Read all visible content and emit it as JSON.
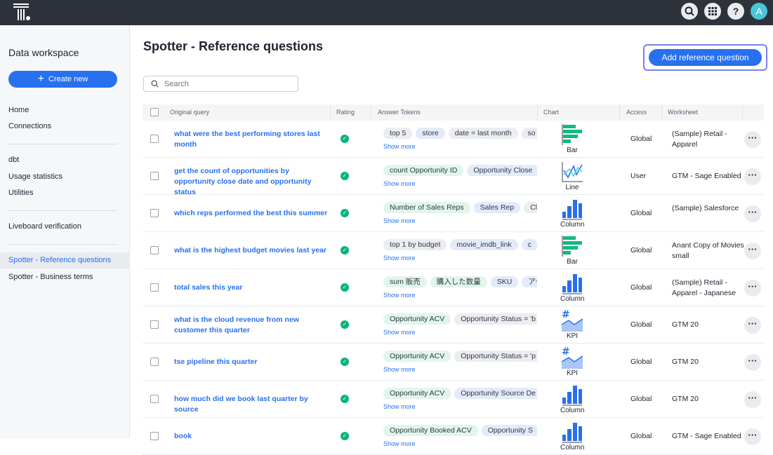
{
  "header": {
    "avatar_initial": "A",
    "icons": [
      "search-icon",
      "apps-grid-icon",
      "help-icon"
    ]
  },
  "sidebar": {
    "title": "Data workspace",
    "create_label": "Create new",
    "items": [
      {
        "label": "Home"
      },
      {
        "label": "Connections"
      },
      {
        "label": "dbt"
      },
      {
        "label": "Usage statistics"
      },
      {
        "label": "Utilities"
      },
      {
        "label": "Liveboard verification"
      },
      {
        "label": "Spotter - Reference questions",
        "active": true
      },
      {
        "label": "Spotter - Business terms"
      }
    ]
  },
  "main": {
    "title": "Spotter - Reference questions",
    "add_label": "Add reference question",
    "search_placeholder": "Search",
    "columns": [
      "Original query",
      "Rating",
      "Answer Tokens",
      "Chart",
      "Access",
      "Worksheet"
    ],
    "show_more": "Show more",
    "colors": {
      "accent": "#2770ef",
      "measure": "#e1f5ec",
      "attribute": "#e3eaf9",
      "keyword": "#ebedf0",
      "rating": "#06b480"
    },
    "rows": [
      {
        "query": "what were the best performing stores last month",
        "rating": "positive",
        "tokens": [
          {
            "t": "top 5",
            "k": "keyword"
          },
          {
            "t": "store",
            "k": "attribute"
          },
          {
            "t": "date = last month",
            "k": "keyword"
          },
          {
            "t": "so",
            "k": "keyword"
          }
        ],
        "chart": "Bar",
        "access": "Global",
        "worksheet": "(Sample) Retail - Apparel"
      },
      {
        "query": "get the count of opportunities by opportunity close date and opportunity status",
        "rating": "positive",
        "tokens": [
          {
            "t": "count Opportunity ID",
            "k": "measure"
          },
          {
            "t": "Opportunity Close",
            "k": "attribute"
          }
        ],
        "chart": "Line",
        "access": "User",
        "worksheet": "GTM - Sage Enabled"
      },
      {
        "query": "which reps performed the best this summer",
        "rating": "positive",
        "tokens": [
          {
            "t": "Number of Sales Reps",
            "k": "measure"
          },
          {
            "t": "Sales Rep",
            "k": "attribute"
          },
          {
            "t": "Cl",
            "k": "keyword"
          }
        ],
        "chart": "Column",
        "access": "Global",
        "worksheet": "(Sample) Salesforce"
      },
      {
        "query": "what is the highest budget movies last year",
        "rating": "positive",
        "tokens": [
          {
            "t": "top 1 by budget",
            "k": "keyword"
          },
          {
            "t": "movie_imdb_link",
            "k": "attribute"
          },
          {
            "t": "c",
            "k": "attribute"
          }
        ],
        "chart": "Bar",
        "access": "Global",
        "worksheet": "Anant Copy of Movies - small"
      },
      {
        "query": "total sales this year",
        "rating": "positive",
        "tokens": [
          {
            "t": "sum 販売",
            "k": "measure"
          },
          {
            "t": "購入した数量",
            "k": "measure"
          },
          {
            "t": "SKU",
            "k": "attribute"
          },
          {
            "t": "アー",
            "k": "attribute"
          }
        ],
        "chart": "Column",
        "access": "Global",
        "worksheet": "(Sample) Retail - Apparel - Japanese"
      },
      {
        "query": "what is the cloud revenue from new customer this quarter",
        "rating": "positive",
        "tokens": [
          {
            "t": "Opportunity ACV",
            "k": "measure"
          },
          {
            "t": "Opportunity Status = 'b",
            "k": "keyword"
          }
        ],
        "chart": "KPI",
        "access": "Global",
        "worksheet": "GTM 20"
      },
      {
        "query": "tse pipeline this quarter",
        "rating": "positive",
        "tokens": [
          {
            "t": "Opportunity ACV",
            "k": "measure"
          },
          {
            "t": "Opportunity Status = 'p",
            "k": "keyword"
          }
        ],
        "chart": "KPI",
        "access": "Global",
        "worksheet": "GTM 20"
      },
      {
        "query": "how much did we book last quarter by source",
        "rating": "positive",
        "tokens": [
          {
            "t": "Opportunity ACV",
            "k": "measure"
          },
          {
            "t": "Opportunity Source De",
            "k": "attribute"
          }
        ],
        "chart": "Column",
        "access": "Global",
        "worksheet": "GTM 20"
      },
      {
        "query": "book",
        "rating": "positive",
        "tokens": [
          {
            "t": "Opportunity Booked ACV",
            "k": "measure"
          },
          {
            "t": "Opportunity S",
            "k": "attribute"
          }
        ],
        "chart": "Column",
        "access": "Global",
        "worksheet": "GTM - Sage Enabled"
      }
    ]
  }
}
